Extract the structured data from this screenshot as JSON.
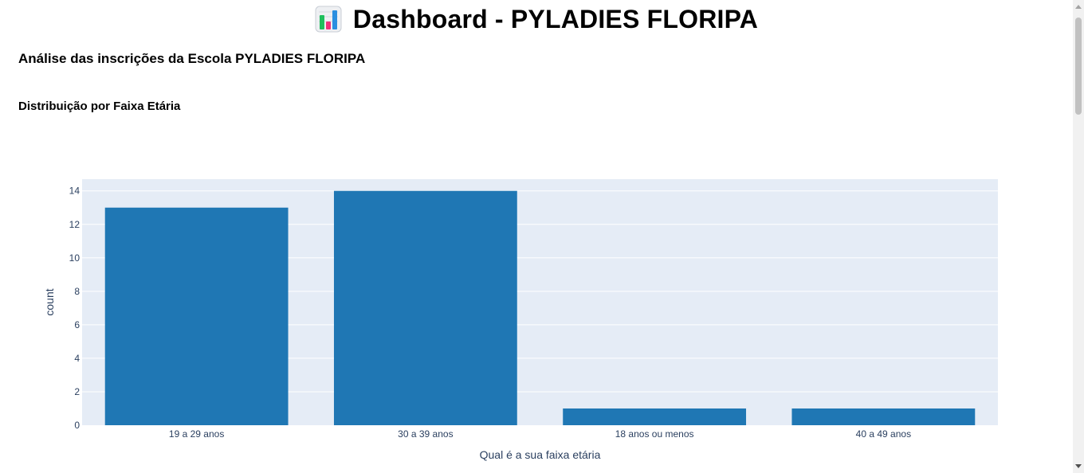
{
  "header": {
    "title": "Dashboard - PYLADIES FLORIPA",
    "icon": "bar-chart-icon"
  },
  "subtitle": "Análise das inscrições da Escola PYLADIES FLORIPA",
  "section_title": "Distribuição por Faixa Etária",
  "colors": {
    "bar": "#1f77b4",
    "plot_bg": "#e5ecf6",
    "grid": "#ffffff",
    "axis_text": "#2a3f5f"
  },
  "chart_data": {
    "type": "bar",
    "categories": [
      "19 a 29 anos",
      "30 a 39 anos",
      "18 anos ou menos",
      "40 a 49 anos"
    ],
    "values": [
      13,
      14,
      1,
      1
    ],
    "xlabel": "Qual é a sua faixa etária",
    "ylabel": "count",
    "ylim": [
      0,
      14.7
    ],
    "yticks": [
      0,
      2,
      4,
      6,
      8,
      10,
      12,
      14
    ],
    "grid": true
  }
}
